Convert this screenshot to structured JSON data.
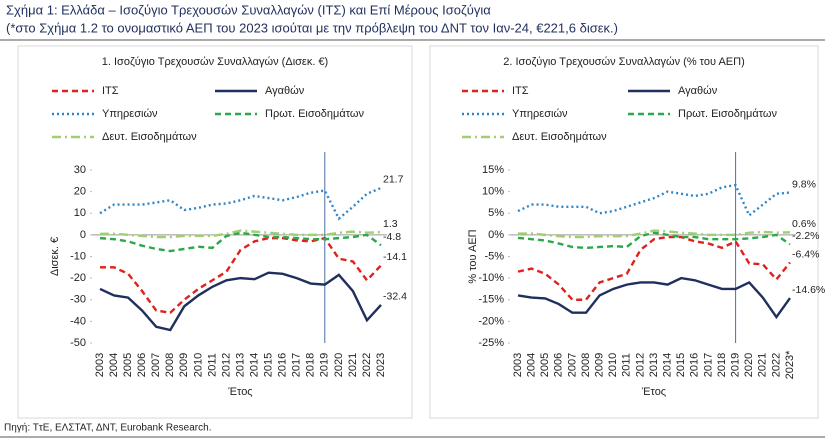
{
  "title": "Σχήμα 1: Ελλάδα – Ισοζύγιο Τρεχουσών Συναλλαγών (ΙΤΣ) και Επί Μέρους Ισοζύγια",
  "subtitle": "(*στο Σχήμα 1.2 το ονομαστικό ΑΕΠ του 2023 ισούται με την πρόβλεψη του ΔΝΤ τον Ιαν-24, €221,6 δισεκ.)",
  "source": "Πηγή: ΤτΕ, ΕΛΣΤΑΤ, ΔΝΤ, Eurobank Research.",
  "chart_data": [
    {
      "type": "line",
      "title": "1. Ισοζύγιο Τρεχουσών Συναλλαγών (Δισεκ. €)",
      "y_label": "Δισεκ. €",
      "x_label": "Έτος",
      "categories": [
        "2003",
        "2004",
        "2005",
        "2006",
        "2007",
        "2008",
        "2009",
        "2010",
        "2011",
        "2012",
        "2013",
        "2014",
        "2015",
        "2016",
        "2017",
        "2018",
        "2019",
        "2020",
        "2021",
        "2022",
        "2023"
      ],
      "ylim": [
        -50,
        30
      ],
      "yticks": [
        -50,
        -40,
        -30,
        -20,
        -10,
        0,
        10,
        20,
        30
      ],
      "series": [
        {
          "name": "ΙΤΣ",
          "color": "#e0201b",
          "style": "dashed",
          "values": [
            -15,
            -15,
            -18,
            -26,
            -35,
            -36,
            -30,
            -25,
            -21,
            -17,
            -7,
            -3,
            -1.5,
            -1.5,
            -2.5,
            -3,
            -1.5,
            -11,
            -12.3,
            -21,
            -14.1
          ]
        },
        {
          "name": "Αγαθών",
          "color": "#1f2f5e",
          "style": "solid",
          "values": [
            -25,
            -28,
            -29,
            -35,
            -42.5,
            -44,
            -33,
            -28,
            -24,
            -21,
            -20,
            -20.5,
            -17.5,
            -18,
            -20,
            -22.5,
            -23,
            -18.5,
            -26,
            -39.5,
            -32.4
          ]
        },
        {
          "name": "Υπηρεσιών",
          "color": "#2e86c8",
          "style": "dotted",
          "values": [
            10,
            14,
            14,
            14,
            15,
            16,
            11.5,
            12.5,
            14,
            14.5,
            16,
            18,
            17,
            16,
            17.5,
            19.5,
            20.5,
            7.5,
            13,
            19,
            21.7
          ]
        },
        {
          "name": "Πρωτ. Εισοδημάτων",
          "color": "#2aa84a",
          "style": "dashed",
          "values": [
            -1.5,
            -2,
            -3,
            -5,
            -6.5,
            -7.5,
            -6.5,
            -5.5,
            -6,
            -0.5,
            1,
            0,
            -1,
            -1,
            -1.5,
            -2,
            -2,
            -1.5,
            -1,
            0,
            -4.8
          ]
        },
        {
          "name": "Δευτ. Εισοδημάτων",
          "color": "#9fcf6e",
          "style": "dashdot",
          "values": [
            0.5,
            0.5,
            0,
            -0.5,
            -1,
            -1,
            -0.5,
            -0.5,
            -0.5,
            0.5,
            2,
            1.5,
            1,
            0.5,
            0,
            0,
            0,
            1,
            1.5,
            1,
            1.3
          ]
        }
      ]
    },
    {
      "type": "line",
      "title": "2. Ισοζύγιο Τρεχουσών Συναλλαγών (% του ΑΕΠ)",
      "y_label": "% του ΑΕΠ",
      "x_label": "Έτος",
      "categories": [
        "2003",
        "2004",
        "2005",
        "2006",
        "2007",
        "2008",
        "2009",
        "2010",
        "2011",
        "2012",
        "2013",
        "2014",
        "2015",
        "2016",
        "2017",
        "2018",
        "2019",
        "2020",
        "2021",
        "2022",
        "2023*"
      ],
      "ylim": [
        -25,
        15
      ],
      "yticks": [
        {
          "value": -25,
          "label": "-25%"
        },
        {
          "value": -20,
          "label": "-20%"
        },
        {
          "value": -15,
          "label": "-15%"
        },
        {
          "value": -10,
          "label": "-10%"
        },
        {
          "value": -5,
          "label": "-5%"
        },
        {
          "value": 0,
          "label": "0%"
        },
        {
          "value": 5,
          "label": "5%"
        },
        {
          "value": 10,
          "label": "10%"
        },
        {
          "value": 15,
          "label": "15%"
        }
      ],
      "series": [
        {
          "name": "ΙΤΣ",
          "color": "#e0201b",
          "style": "dashed",
          "values": [
            -8.5,
            -7.8,
            -9,
            -11.5,
            -15,
            -15,
            -11,
            -10,
            -9,
            -3.5,
            -1,
            -0.5,
            -0.5,
            -1.5,
            -2,
            -3,
            -1.5,
            -6.6,
            -6.8,
            -10.3,
            -6.4
          ],
          "value_labels": [
            null,
            null,
            null,
            null,
            null,
            null,
            null,
            null,
            null,
            null,
            null,
            null,
            null,
            null,
            null,
            null,
            null,
            null,
            null,
            null,
            "-6.4%"
          ]
        },
        {
          "name": "Αγαθών",
          "color": "#1f2f5e",
          "style": "solid",
          "values": [
            -14,
            -14.5,
            -14.7,
            -16,
            -18,
            -18,
            -14,
            -12.5,
            -11.5,
            -11,
            -11,
            -11.5,
            -10,
            -10.5,
            -11.5,
            -12.5,
            -12.5,
            -11,
            -14.5,
            -19,
            -14.6
          ],
          "value_labels": [
            null,
            null,
            null,
            null,
            null,
            null,
            null,
            null,
            null,
            null,
            null,
            null,
            null,
            null,
            null,
            null,
            null,
            null,
            null,
            null,
            "-14.6%"
          ]
        },
        {
          "name": "Υπηρεσιών",
          "color": "#2e86c8",
          "style": "dotted",
          "values": [
            5.5,
            7,
            7,
            6.5,
            6.5,
            6.5,
            5,
            5.5,
            6.5,
            7.5,
            8.5,
            10,
            9.5,
            9,
            9.5,
            11,
            11.5,
            4.5,
            7,
            9.5,
            9.8
          ],
          "value_labels": [
            null,
            null,
            null,
            null,
            null,
            null,
            null,
            null,
            null,
            null,
            null,
            null,
            null,
            null,
            null,
            null,
            null,
            null,
            null,
            null,
            "9.8%"
          ]
        },
        {
          "name": "Πρωτ. Εισοδημάτων",
          "color": "#2aa84a",
          "style": "dashed",
          "values": [
            -0.7,
            -1,
            -1.3,
            -2,
            -2.8,
            -3,
            -2.8,
            -2.6,
            -2.8,
            -0.3,
            0.5,
            0,
            -0.5,
            -0.5,
            -1,
            -1,
            -1,
            -0.8,
            -0.5,
            0,
            -2.2
          ],
          "value_labels": [
            null,
            null,
            null,
            null,
            null,
            null,
            null,
            null,
            null,
            null,
            null,
            null,
            null,
            null,
            null,
            null,
            null,
            null,
            null,
            null,
            "-2.2%"
          ]
        },
        {
          "name": "Δευτ. Εισοδημάτων",
          "color": "#9fcf6e",
          "style": "dashdot",
          "values": [
            0.3,
            0.3,
            0,
            -0.3,
            -0.5,
            -0.5,
            -0.3,
            -0.3,
            -0.3,
            0.3,
            1,
            0.8,
            0.5,
            0.3,
            0,
            0,
            0,
            0.5,
            0.7,
            0.5,
            0.6
          ],
          "value_labels": [
            null,
            null,
            null,
            null,
            null,
            null,
            null,
            null,
            null,
            null,
            null,
            null,
            null,
            null,
            null,
            null,
            null,
            null,
            null,
            null,
            "0.6%"
          ]
        }
      ]
    }
  ]
}
